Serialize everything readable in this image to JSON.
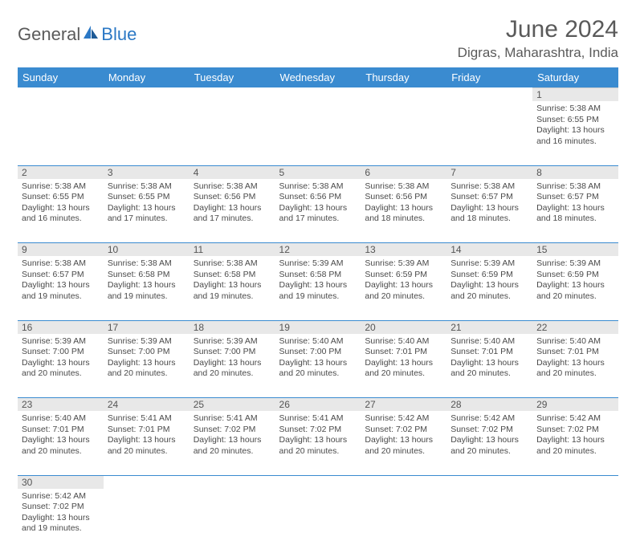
{
  "logo": {
    "textGray": "General",
    "textBlue": "Blue"
  },
  "title": "June 2024",
  "location": "Digras, Maharashtra, India",
  "colors": {
    "headerBg": "#3a8bd0",
    "headerText": "#ffffff",
    "dayNumBg": "#e8e8e8",
    "cellBorder": "#3a8bd0",
    "logoBlue": "#2b78c5",
    "textGray": "#5a5a5a"
  },
  "dayHeaders": [
    "Sunday",
    "Monday",
    "Tuesday",
    "Wednesday",
    "Thursday",
    "Friday",
    "Saturday"
  ],
  "weeks": [
    [
      null,
      null,
      null,
      null,
      null,
      null,
      {
        "d": "1",
        "sunrise": "Sunrise: 5:38 AM",
        "sunset": "Sunset: 6:55 PM",
        "day1": "Daylight: 13 hours",
        "day2": "and 16 minutes."
      }
    ],
    [
      {
        "d": "2",
        "sunrise": "Sunrise: 5:38 AM",
        "sunset": "Sunset: 6:55 PM",
        "day1": "Daylight: 13 hours",
        "day2": "and 16 minutes."
      },
      {
        "d": "3",
        "sunrise": "Sunrise: 5:38 AM",
        "sunset": "Sunset: 6:55 PM",
        "day1": "Daylight: 13 hours",
        "day2": "and 17 minutes."
      },
      {
        "d": "4",
        "sunrise": "Sunrise: 5:38 AM",
        "sunset": "Sunset: 6:56 PM",
        "day1": "Daylight: 13 hours",
        "day2": "and 17 minutes."
      },
      {
        "d": "5",
        "sunrise": "Sunrise: 5:38 AM",
        "sunset": "Sunset: 6:56 PM",
        "day1": "Daylight: 13 hours",
        "day2": "and 17 minutes."
      },
      {
        "d": "6",
        "sunrise": "Sunrise: 5:38 AM",
        "sunset": "Sunset: 6:56 PM",
        "day1": "Daylight: 13 hours",
        "day2": "and 18 minutes."
      },
      {
        "d": "7",
        "sunrise": "Sunrise: 5:38 AM",
        "sunset": "Sunset: 6:57 PM",
        "day1": "Daylight: 13 hours",
        "day2": "and 18 minutes."
      },
      {
        "d": "8",
        "sunrise": "Sunrise: 5:38 AM",
        "sunset": "Sunset: 6:57 PM",
        "day1": "Daylight: 13 hours",
        "day2": "and 18 minutes."
      }
    ],
    [
      {
        "d": "9",
        "sunrise": "Sunrise: 5:38 AM",
        "sunset": "Sunset: 6:57 PM",
        "day1": "Daylight: 13 hours",
        "day2": "and 19 minutes."
      },
      {
        "d": "10",
        "sunrise": "Sunrise: 5:38 AM",
        "sunset": "Sunset: 6:58 PM",
        "day1": "Daylight: 13 hours",
        "day2": "and 19 minutes."
      },
      {
        "d": "11",
        "sunrise": "Sunrise: 5:38 AM",
        "sunset": "Sunset: 6:58 PM",
        "day1": "Daylight: 13 hours",
        "day2": "and 19 minutes."
      },
      {
        "d": "12",
        "sunrise": "Sunrise: 5:39 AM",
        "sunset": "Sunset: 6:58 PM",
        "day1": "Daylight: 13 hours",
        "day2": "and 19 minutes."
      },
      {
        "d": "13",
        "sunrise": "Sunrise: 5:39 AM",
        "sunset": "Sunset: 6:59 PM",
        "day1": "Daylight: 13 hours",
        "day2": "and 20 minutes."
      },
      {
        "d": "14",
        "sunrise": "Sunrise: 5:39 AM",
        "sunset": "Sunset: 6:59 PM",
        "day1": "Daylight: 13 hours",
        "day2": "and 20 minutes."
      },
      {
        "d": "15",
        "sunrise": "Sunrise: 5:39 AM",
        "sunset": "Sunset: 6:59 PM",
        "day1": "Daylight: 13 hours",
        "day2": "and 20 minutes."
      }
    ],
    [
      {
        "d": "16",
        "sunrise": "Sunrise: 5:39 AM",
        "sunset": "Sunset: 7:00 PM",
        "day1": "Daylight: 13 hours",
        "day2": "and 20 minutes."
      },
      {
        "d": "17",
        "sunrise": "Sunrise: 5:39 AM",
        "sunset": "Sunset: 7:00 PM",
        "day1": "Daylight: 13 hours",
        "day2": "and 20 minutes."
      },
      {
        "d": "18",
        "sunrise": "Sunrise: 5:39 AM",
        "sunset": "Sunset: 7:00 PM",
        "day1": "Daylight: 13 hours",
        "day2": "and 20 minutes."
      },
      {
        "d": "19",
        "sunrise": "Sunrise: 5:40 AM",
        "sunset": "Sunset: 7:00 PM",
        "day1": "Daylight: 13 hours",
        "day2": "and 20 minutes."
      },
      {
        "d": "20",
        "sunrise": "Sunrise: 5:40 AM",
        "sunset": "Sunset: 7:01 PM",
        "day1": "Daylight: 13 hours",
        "day2": "and 20 minutes."
      },
      {
        "d": "21",
        "sunrise": "Sunrise: 5:40 AM",
        "sunset": "Sunset: 7:01 PM",
        "day1": "Daylight: 13 hours",
        "day2": "and 20 minutes."
      },
      {
        "d": "22",
        "sunrise": "Sunrise: 5:40 AM",
        "sunset": "Sunset: 7:01 PM",
        "day1": "Daylight: 13 hours",
        "day2": "and 20 minutes."
      }
    ],
    [
      {
        "d": "23",
        "sunrise": "Sunrise: 5:40 AM",
        "sunset": "Sunset: 7:01 PM",
        "day1": "Daylight: 13 hours",
        "day2": "and 20 minutes."
      },
      {
        "d": "24",
        "sunrise": "Sunrise: 5:41 AM",
        "sunset": "Sunset: 7:01 PM",
        "day1": "Daylight: 13 hours",
        "day2": "and 20 minutes."
      },
      {
        "d": "25",
        "sunrise": "Sunrise: 5:41 AM",
        "sunset": "Sunset: 7:02 PM",
        "day1": "Daylight: 13 hours",
        "day2": "and 20 minutes."
      },
      {
        "d": "26",
        "sunrise": "Sunrise: 5:41 AM",
        "sunset": "Sunset: 7:02 PM",
        "day1": "Daylight: 13 hours",
        "day2": "and 20 minutes."
      },
      {
        "d": "27",
        "sunrise": "Sunrise: 5:42 AM",
        "sunset": "Sunset: 7:02 PM",
        "day1": "Daylight: 13 hours",
        "day2": "and 20 minutes."
      },
      {
        "d": "28",
        "sunrise": "Sunrise: 5:42 AM",
        "sunset": "Sunset: 7:02 PM",
        "day1": "Daylight: 13 hours",
        "day2": "and 20 minutes."
      },
      {
        "d": "29",
        "sunrise": "Sunrise: 5:42 AM",
        "sunset": "Sunset: 7:02 PM",
        "day1": "Daylight: 13 hours",
        "day2": "and 20 minutes."
      }
    ],
    [
      {
        "d": "30",
        "sunrise": "Sunrise: 5:42 AM",
        "sunset": "Sunset: 7:02 PM",
        "day1": "Daylight: 13 hours",
        "day2": "and 19 minutes."
      },
      null,
      null,
      null,
      null,
      null,
      null
    ]
  ]
}
